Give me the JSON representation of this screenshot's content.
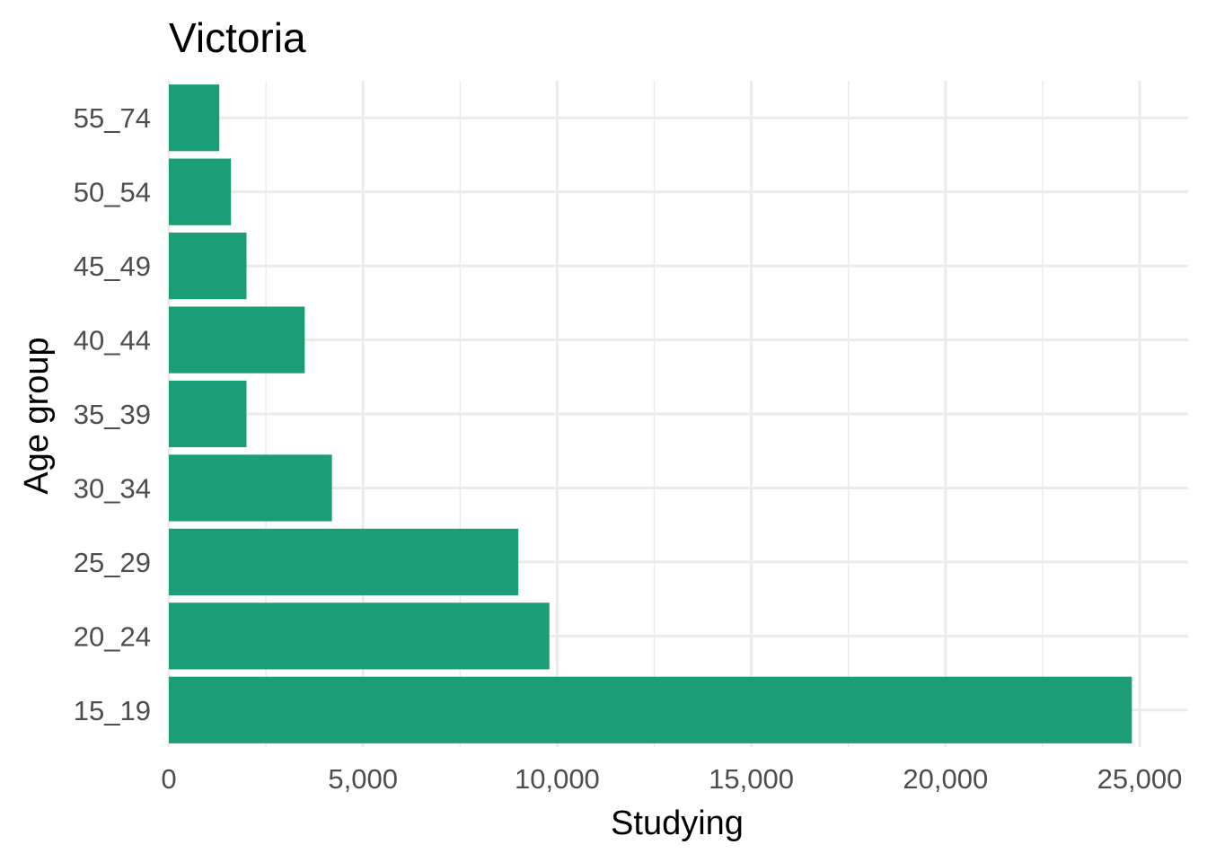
{
  "chart_data": {
    "type": "bar",
    "orientation": "horizontal",
    "title": "Victoria",
    "xlabel": "Studying",
    "ylabel": "Age group",
    "categories": [
      "15_19",
      "20_24",
      "25_29",
      "30_34",
      "35_39",
      "40_44",
      "45_49",
      "50_54",
      "55_74"
    ],
    "values": [
      24800,
      9800,
      9000,
      4200,
      2000,
      3500,
      2000,
      1600,
      1300
    ],
    "xlim": [
      0,
      25000
    ],
    "x_ticks": [
      0,
      5000,
      10000,
      15000,
      20000,
      25000
    ],
    "x_tick_labels": [
      "0",
      "5,000",
      "10,000",
      "15,000",
      "20,000",
      "25,000"
    ],
    "bar_color": "#1b9e77",
    "grid": true,
    "legend": "none"
  }
}
